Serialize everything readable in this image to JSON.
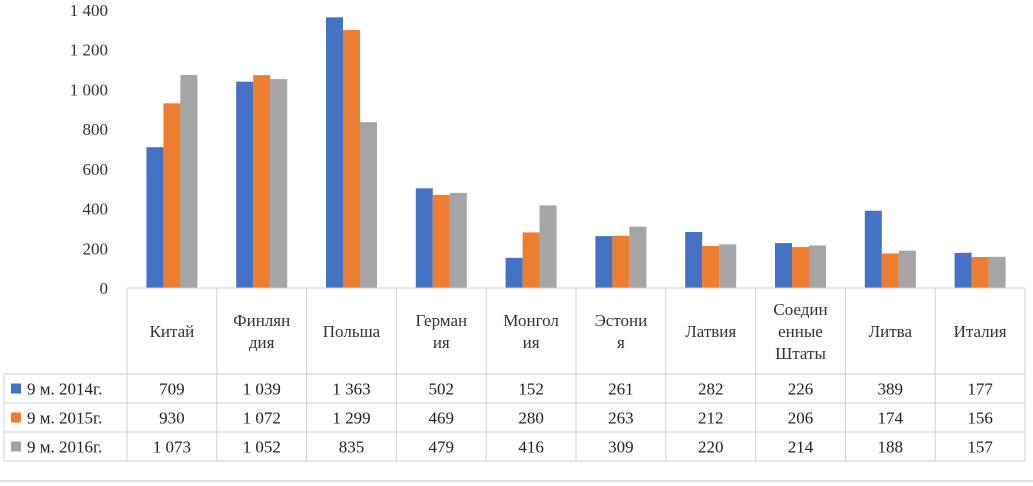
{
  "chart_data": {
    "type": "bar",
    "categories": [
      [
        "Китай"
      ],
      [
        "Финлян",
        "дия"
      ],
      [
        "Польша"
      ],
      [
        "Герман",
        "ия"
      ],
      [
        "Монгол",
        "ия"
      ],
      [
        "Эстони",
        "я"
      ],
      [
        "Латвия"
      ],
      [
        "Соедин",
        "енные",
        "Штаты"
      ],
      [
        "Литва"
      ],
      [
        "Италия"
      ]
    ],
    "series": [
      {
        "name": "9 м. 2014г.",
        "color": "#4472C4",
        "values": [
          709,
          1039,
          1363,
          502,
          152,
          261,
          282,
          226,
          389,
          177
        ],
        "labels": [
          "709",
          "1 039",
          "1 363",
          "502",
          "152",
          "261",
          "282",
          "226",
          "389",
          "177"
        ]
      },
      {
        "name": "9 м. 2015г.",
        "color": "#ED7D31",
        "values": [
          930,
          1072,
          1299,
          469,
          280,
          263,
          212,
          206,
          174,
          156
        ],
        "labels": [
          "930",
          "1 072",
          "1 299",
          "469",
          "280",
          "263",
          "212",
          "206",
          "174",
          "156"
        ]
      },
      {
        "name": "9 м. 2016г.",
        "color": "#A5A5A5",
        "values": [
          1073,
          1052,
          835,
          479,
          416,
          309,
          220,
          214,
          188,
          157
        ],
        "labels": [
          "1 073",
          "1 052",
          "835",
          "479",
          "416",
          "309",
          "220",
          "214",
          "188",
          "157"
        ]
      }
    ],
    "ylim": [
      0,
      1400
    ],
    "yticks": [
      {
        "value": 0,
        "label": "0"
      },
      {
        "value": 200,
        "label": "200"
      },
      {
        "value": 400,
        "label": "400"
      },
      {
        "value": 600,
        "label": "600"
      },
      {
        "value": 800,
        "label": "800"
      },
      {
        "value": 1000,
        "label": "1 000"
      },
      {
        "value": 1200,
        "label": "1 200"
      },
      {
        "value": 1400,
        "label": "1 400"
      }
    ],
    "grid": false,
    "legend": "data-table"
  }
}
